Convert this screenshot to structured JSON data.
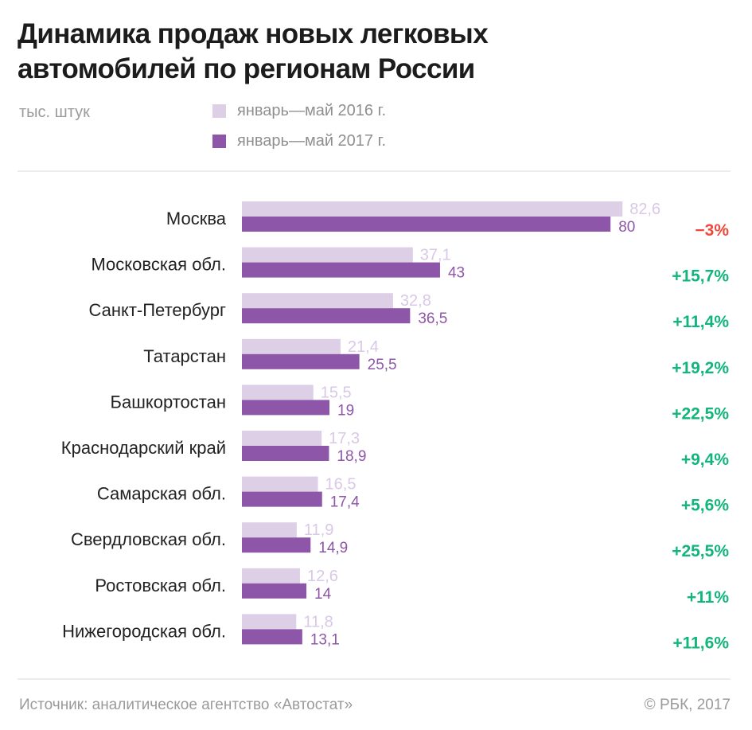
{
  "header": {
    "title_lines": [
      "Динамика продаж новых легковых",
      "автомобилей по регионам России"
    ],
    "units": "тыс. штук"
  },
  "legend": [
    {
      "label": "январь—май 2016 г.",
      "color": "#ddcfe6"
    },
    {
      "label": "январь—май 2017 г.",
      "color": "#8e56a8"
    }
  ],
  "colors": {
    "bar_2016": "#ddcfe6",
    "bar_2017": "#8e56a8",
    "label_2016": "#d9c8e6",
    "label_2017": "#8e56a8",
    "positive": "#12b57b",
    "negative": "#f0483b",
    "region_label": "#222222"
  },
  "chart_data": {
    "type": "bar",
    "orientation": "horizontal",
    "title": "Динамика продаж новых легковых автомобилей по регионам России",
    "unit_label": "тыс. штук",
    "categories": [
      "Москва",
      "Московская обл.",
      "Санкт-Петербург",
      "Татарстан",
      "Башкортостан",
      "Краснодарский край",
      "Самарская обл.",
      "Свердловская обл.",
      "Ростовская обл.",
      "Нижегородская обл."
    ],
    "series": [
      {
        "name": "январь—май 2016 г.",
        "values": [
          82.6,
          37.1,
          32.8,
          21.4,
          15.5,
          17.3,
          16.5,
          11.9,
          12.6,
          11.8
        ],
        "labels": [
          "82,6",
          "37,1",
          "32,8",
          "21,4",
          "15,5",
          "17,3",
          "16,5",
          "11,9",
          "12,6",
          "11,8"
        ]
      },
      {
        "name": "январь—май 2017 г.",
        "values": [
          80,
          43,
          36.5,
          25.5,
          19,
          18.9,
          17.4,
          14.9,
          14,
          13.1
        ],
        "labels": [
          "80",
          "43",
          "36,5",
          "25,5",
          "19",
          "18,9",
          "17,4",
          "14,9",
          "14",
          "13,1"
        ]
      }
    ],
    "change_labels": [
      "−3%",
      "+15,7%",
      "+11,4%",
      "+19,2%",
      "+22,5%",
      "+9,4%",
      "+5,6%",
      "+25,5%",
      "+11%",
      "+11,6%"
    ],
    "change_values": [
      -3,
      15.7,
      11.4,
      19.2,
      22.5,
      9.4,
      5.6,
      25.5,
      11,
      11.6
    ],
    "xlim": [
      0,
      82.6
    ],
    "grid": false,
    "legend_position": "top"
  },
  "footer": {
    "source": "Источник: аналитическое агентство «Автостат»",
    "copyright": "© РБК, 2017"
  }
}
